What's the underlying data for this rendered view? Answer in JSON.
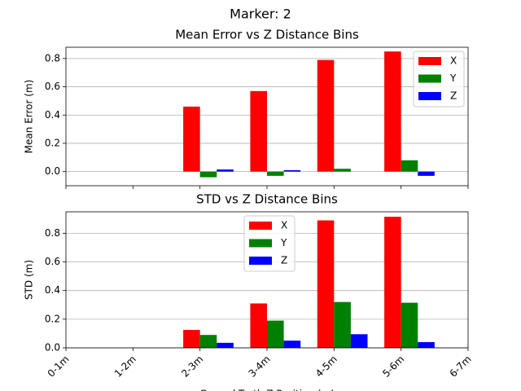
{
  "title": "Marker: 2",
  "chart_data": [
    {
      "type": "bar",
      "title": "Mean Error vs Z Distance Bins",
      "ylabel": "Mean Error (m)",
      "ylim": [
        -0.1,
        0.88
      ],
      "yticks": [
        {
          "value": 0,
          "label": "0.0"
        },
        0.2,
        0.4,
        0.6,
        0.8
      ],
      "grid": true,
      "legend": "upper right",
      "series": [
        {
          "name": "X",
          "color": "#ff0000",
          "values": [
            null,
            null,
            0.46,
            0.57,
            0.79,
            0.85,
            null
          ]
        },
        {
          "name": "Y",
          "color": "#008000",
          "values": [
            null,
            null,
            -0.04,
            -0.03,
            0.02,
            0.08,
            null
          ]
        },
        {
          "name": "Z",
          "color": "#0000ff",
          "values": [
            null,
            null,
            0.015,
            0.01,
            0.0,
            -0.03,
            null
          ]
        }
      ]
    },
    {
      "type": "bar",
      "title": "STD vs Z Distance Bins",
      "ylabel": "STD (m)",
      "xlabel": "Ground Truth Z Position (m)",
      "categories": [
        "0-1m",
        "1-2m",
        "2-3m",
        "3-4m",
        "4-5m",
        "5-6m",
        "6-7m"
      ],
      "ylim": [
        0,
        0.95
      ],
      "yticks": [
        {
          "value": 0,
          "label": "0.0"
        },
        0.2,
        0.4,
        0.6,
        0.8
      ],
      "grid": true,
      "legend": "upper center",
      "series": [
        {
          "name": "X",
          "color": "#ff0000",
          "values": [
            null,
            null,
            0.125,
            0.31,
            0.89,
            0.915,
            null
          ]
        },
        {
          "name": "Y",
          "color": "#008000",
          "values": [
            null,
            null,
            0.09,
            0.19,
            0.32,
            0.315,
            null
          ]
        },
        {
          "name": "Z",
          "color": "#0000ff",
          "values": [
            null,
            null,
            0.035,
            0.05,
            0.095,
            0.04,
            null
          ]
        }
      ]
    }
  ]
}
